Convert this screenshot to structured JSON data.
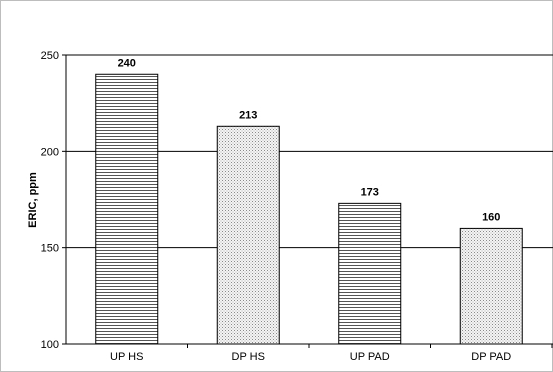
{
  "chart_data": {
    "type": "bar",
    "categories": [
      "UP HS",
      "DP HS",
      "UP PAD",
      "DP PAD"
    ],
    "values": [
      240,
      213,
      173,
      160
    ],
    "data_labels": [
      "240",
      "213",
      "173",
      "160"
    ],
    "title": "",
    "xlabel": "",
    "ylabel": "ERIC, ppm",
    "ylim": [
      100,
      250
    ],
    "yticks": [
      100,
      150,
      200,
      250
    ],
    "grid": true,
    "legend": "none",
    "series_patterns": [
      "horizontal-lines",
      "dotted",
      "horizontal-lines",
      "dotted"
    ],
    "colors": {
      "bar_fill": "#ffffff",
      "bar_stroke": "#000000",
      "pattern_ink": "#555555",
      "dot_ink": "#8a8a8a",
      "grid": "#000000"
    }
  }
}
